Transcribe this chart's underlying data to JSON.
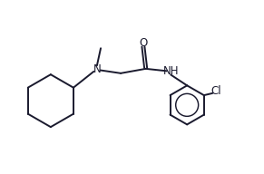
{
  "background_color": "#ffffff",
  "line_color": "#1a1a2e",
  "text_color": "#1a1a2e",
  "bond_lw": 1.4,
  "font_size": 8.5,
  "figsize": [
    2.91,
    1.92
  ],
  "dpi": 100,
  "xlim": [
    0.0,
    10.5
  ],
  "ylim": [
    1.0,
    7.5
  ]
}
